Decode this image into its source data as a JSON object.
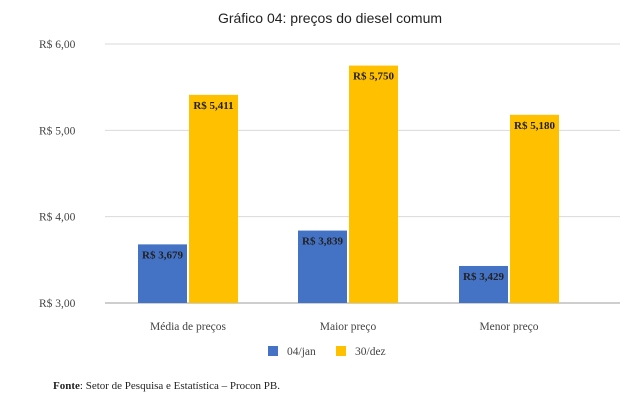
{
  "chart_data": {
    "type": "bar",
    "title": "Gráfico 04: preços do diesel comum",
    "categories": [
      "Média de preços",
      "Maior preço",
      "Menor preço"
    ],
    "series": [
      {
        "name": "04/jan",
        "values": [
          3.679,
          3.839,
          3.429
        ],
        "labels": [
          "R$ 3,679",
          "R$ 3,839",
          "R$ 3,429"
        ],
        "color": "#4472C4"
      },
      {
        "name": "30/dez",
        "values": [
          5.411,
          5.75,
          5.18
        ],
        "labels": [
          "R$ 5,411",
          "R$ 5,750",
          "R$ 5,180"
        ],
        "color": "#FFC000"
      }
    ],
    "ylim": [
      3,
      6
    ],
    "yticks": [
      3,
      4,
      5,
      6
    ],
    "ytick_labels": [
      "R$ 3,00",
      "R$ 4,00",
      "R$ 5,00",
      "R$ 6,00"
    ],
    "grid": true,
    "legend_position": "bottom"
  },
  "source": {
    "label": "Fonte",
    "text": ": Setor de Pesquisa e Estatística – Procon PB."
  }
}
